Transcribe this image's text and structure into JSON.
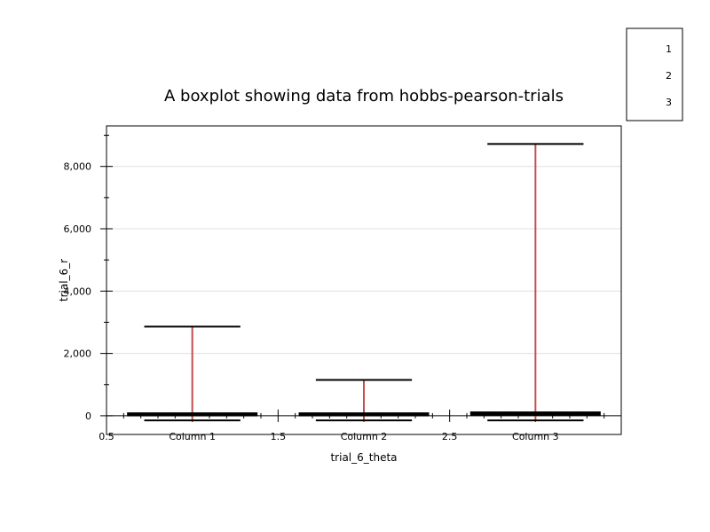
{
  "chart_data": {
    "type": "box",
    "title": "A  boxplot showing data from hobbs-pearson-trials",
    "xlabel": "trial_6_theta",
    "ylabel": "trial_6_r",
    "xlim": [
      0.5,
      3.5
    ],
    "ylim": [
      -600,
      9300
    ],
    "x_ticks": [
      {
        "x": 0.5,
        "label": "0.5"
      },
      {
        "x": 1,
        "label": "Column 1"
      },
      {
        "x": 1.5,
        "label": "1.5"
      },
      {
        "x": 2,
        "label": "Column 2"
      },
      {
        "x": 2.5,
        "label": "2.5"
      },
      {
        "x": 3,
        "label": "Column 3"
      }
    ],
    "y_ticks": [
      {
        "y": 0,
        "label": "0"
      },
      {
        "y": 2000,
        "label": "2,000"
      },
      {
        "y": 4000,
        "label": "4,000"
      },
      {
        "y": 6000,
        "label": "6,000"
      },
      {
        "y": 8000,
        "label": "8,000"
      }
    ],
    "grid": true,
    "legend": {
      "position": "top-right",
      "entries": [
        "1",
        "2",
        "3"
      ]
    },
    "series": [
      {
        "label": "Column 1",
        "x": 1,
        "whisker_low": -150,
        "q1": 10,
        "median": 40,
        "q3": 80,
        "whisker_high": 2860
      },
      {
        "label": "Column 2",
        "x": 2,
        "whisker_low": -150,
        "q1": 10,
        "median": 40,
        "q3": 80,
        "whisker_high": 1150
      },
      {
        "label": "Column 3",
        "x": 3,
        "whisker_low": -150,
        "q1": 20,
        "median": 60,
        "q3": 110,
        "whisker_high": 8720
      }
    ],
    "colors": {
      "whisker": "#c0504d",
      "box": "#000000",
      "grid": "#e0e0e0"
    }
  }
}
